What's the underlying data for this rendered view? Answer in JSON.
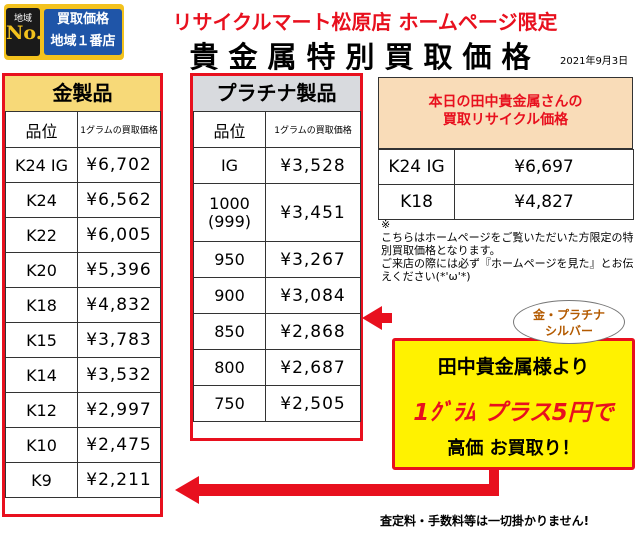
{
  "header": {
    "badge_small": "地域",
    "badge_no1": "No.1",
    "badge_line1": "買取価格",
    "badge_line2": "地域１番店",
    "title_line1": "リサイクルマート松原店 ホームページ限定",
    "title_line2": "貴金属特別買取価格",
    "date": "2021年9月3日"
  },
  "gold": {
    "title": "金製品",
    "col_grade": "品位",
    "col_price": "1グラムの買取価格",
    "rows": [
      {
        "grade": "K24 IG",
        "price": "¥6,702"
      },
      {
        "grade": "K24",
        "price": "¥6,562"
      },
      {
        "grade": "K22",
        "price": "¥6,005"
      },
      {
        "grade": "K20",
        "price": "¥5,396"
      },
      {
        "grade": "K18",
        "price": "¥4,832"
      },
      {
        "grade": "K15",
        "price": "¥3,783"
      },
      {
        "grade": "K14",
        "price": "¥3,532"
      },
      {
        "grade": "K12",
        "price": "¥2,997"
      },
      {
        "grade": "K10",
        "price": "¥2,475"
      },
      {
        "grade": "K9",
        "price": "¥2,211"
      }
    ]
  },
  "platinum": {
    "title": "プラチナ製品",
    "col_grade": "品位",
    "col_price": "1グラムの買取価格",
    "rows": [
      {
        "grade": "IG",
        "price": "¥3,528"
      },
      {
        "grade": "1000\n(999)",
        "price": "¥3,451"
      },
      {
        "grade": "950",
        "price": "¥3,267"
      },
      {
        "grade": "900",
        "price": "¥3,084"
      },
      {
        "grade": "850",
        "price": "¥2,868"
      },
      {
        "grade": "800",
        "price": "¥2,687"
      },
      {
        "grade": "750",
        "price": "¥2,505"
      }
    ]
  },
  "tanaka": {
    "title_line1": "本日の田中貴金属さんの",
    "title_line2": "買取リサイクル価格",
    "rows": [
      {
        "grade": "K24 IG",
        "price": "¥6,697"
      },
      {
        "grade": "K18",
        "price": "¥4,827"
      }
    ]
  },
  "note": "※\nこちらはホームページをご覧いただいた方限定の特別買取価格となります。\nご来店の際には必ず『ホームページを見た』とお伝えください(*'ω'*)",
  "callout": {
    "bubble_line1": "金・プラチナ",
    "bubble_line2": "シルバー",
    "line1": "田中貴金属様より",
    "line2": "1ｸﾞﾗﾑ プラス5円で",
    "line3": "高価 お買取り！"
  },
  "footer": "査定料・手数料等は一切掛かりません!",
  "colors": {
    "accent_red": "#e8101e",
    "gold_header": "#f7d978",
    "platinum_header": "#d8dade",
    "callout_yellow": "#fff200"
  }
}
